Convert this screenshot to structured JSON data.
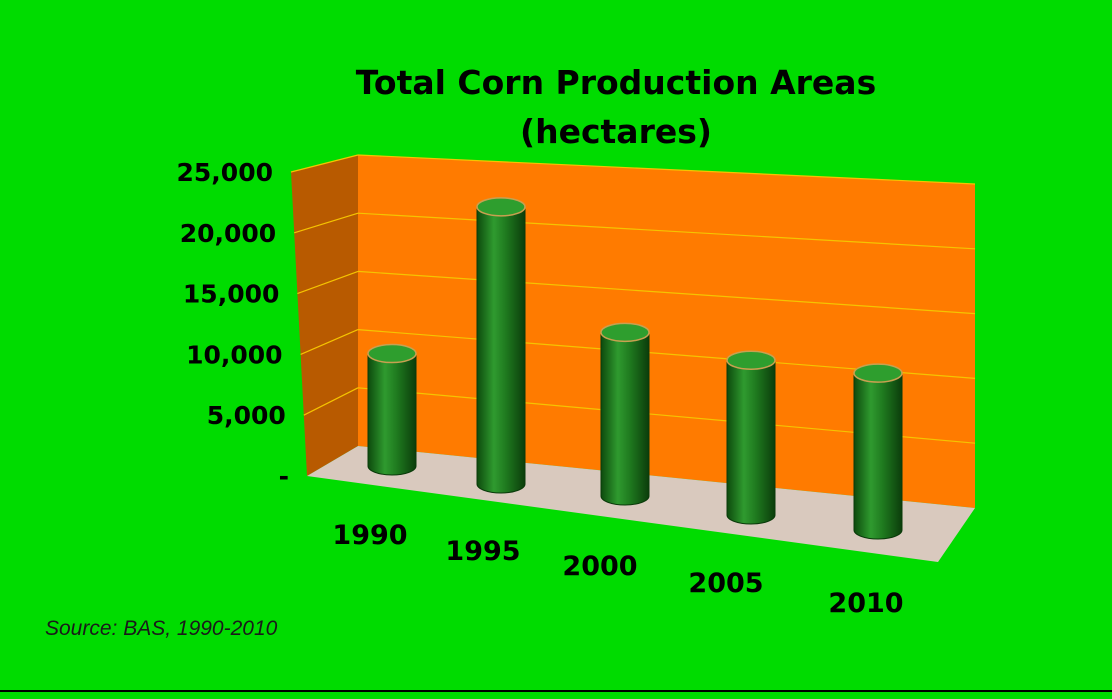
{
  "source_note": "Source: BAS, 1990-2010",
  "colors": {
    "background": "#00dc00",
    "back_wall": "#ff7b00",
    "side_wall": "#b85a00",
    "floor": "#d9c9be",
    "bar": "#1f7a1f",
    "bar_top": "#2e9e2e",
    "gridline": "#f5c400"
  },
  "chart_data": {
    "type": "bar",
    "style": "3d-cylinder",
    "title": [
      "Total Corn Production Areas",
      "(hectares)"
    ],
    "categories": [
      "1990",
      "1995",
      "2000",
      "2005",
      "2010"
    ],
    "values": [
      9600,
      23200,
      13400,
      12400,
      12300
    ],
    "ylim": [
      0,
      25000
    ],
    "yticks": [
      0,
      5000,
      10000,
      15000,
      20000,
      25000
    ],
    "ytick_labels": [
      "-",
      "5,000",
      "10,000",
      "15,000",
      "20,000",
      "25,000"
    ],
    "xlabel": "",
    "ylabel": "",
    "grid": true,
    "legend": "none"
  }
}
